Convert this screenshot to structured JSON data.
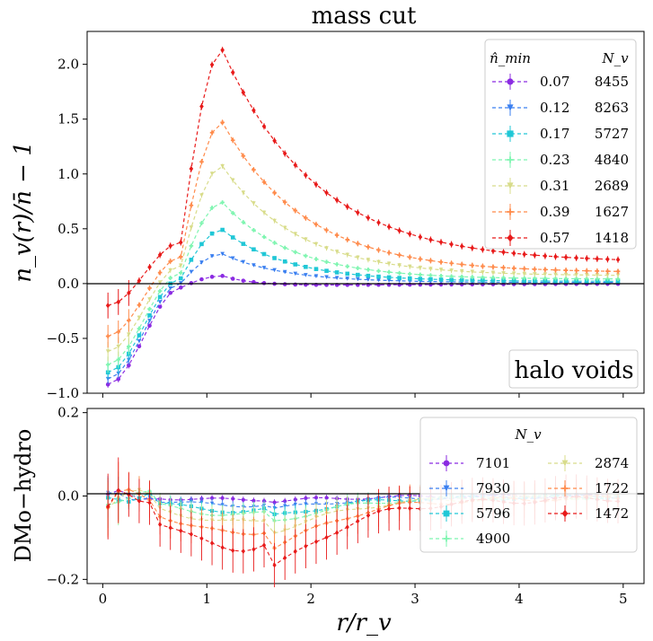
{
  "chart_data": [
    {
      "type": "line",
      "panel": "top",
      "title": "mass cut",
      "ylabel": "n_v(r)/n̄ − 1",
      "xlim": [
        -0.15,
        5.2
      ],
      "ylim": [
        -1.0,
        2.3
      ],
      "yticks": [
        -1.0,
        -0.5,
        0.0,
        0.5,
        1.0,
        1.5,
        2.0
      ],
      "yticklabels": [
        "−1.0",
        "−0.5",
        "0.0",
        "0.5",
        "1.0",
        "1.5",
        "2.0"
      ],
      "annotation": "halo voids",
      "legend_header": [
        "n̂_min",
        "N_v"
      ],
      "series": [
        {
          "name": "0.07",
          "count": "8455",
          "color": "#8b2be2",
          "marker": "circle",
          "peak": 0.07,
          "tail": 0.0,
          "mn": -0.92
        },
        {
          "name": "0.12",
          "count": "8263",
          "color": "#3a7ff0",
          "marker": "tri",
          "peak": 0.27,
          "tail": 0.01,
          "mn": -0.87
        },
        {
          "name": "0.17",
          "count": "5727",
          "color": "#20c7d6",
          "marker": "square",
          "peak": 0.49,
          "tail": 0.02,
          "mn": -0.81
        },
        {
          "name": "0.23",
          "count": "4840",
          "color": "#7ef5b0",
          "marker": "plus",
          "peak": 0.74,
          "tail": 0.04,
          "mn": -0.74
        },
        {
          "name": "0.31",
          "count": "2689",
          "color": "#d8dc8a",
          "marker": "tri",
          "peak": 1.07,
          "tail": 0.07,
          "mn": -0.62
        },
        {
          "name": "0.39",
          "count": "1627",
          "color": "#ff8a4a",
          "marker": "plus",
          "peak": 1.47,
          "tail": 0.1,
          "mn": -0.48
        },
        {
          "name": "0.57",
          "count": "1418",
          "color": "#e81a1a",
          "marker": "diamond",
          "peak": 2.13,
          "tail": 0.19,
          "mn": -0.2
        }
      ]
    },
    {
      "type": "line",
      "panel": "bottom",
      "xlabel": "r/r_v",
      "ylabel": "DMo−hydro",
      "xlim": [
        -0.15,
        5.2
      ],
      "ylim": [
        -0.21,
        0.21
      ],
      "xticks": [
        0,
        1,
        2,
        3,
        4,
        5
      ],
      "xticklabels": [
        "0",
        "1",
        "2",
        "3",
        "4",
        "5"
      ],
      "yticks": [
        -0.2,
        0.0,
        0.2
      ],
      "yticklabels": [
        "−0.2",
        "0.0",
        "0.2"
      ],
      "legend_header": "N_v",
      "series": [
        {
          "name": "7101",
          "color": "#8b2be2",
          "depth": 0.01
        },
        {
          "name": "7930",
          "color": "#3a7ff0",
          "depth": 0.025
        },
        {
          "name": "5796",
          "color": "#20c7d6",
          "depth": 0.04
        },
        {
          "name": "4900",
          "color": "#7ef5b0",
          "depth": 0.05
        },
        {
          "name": "2874",
          "color": "#d8dc8a",
          "depth": 0.07
        },
        {
          "name": "1722",
          "color": "#ff8a4a",
          "depth": 0.1
        },
        {
          "name": "1472",
          "color": "#e81a1a",
          "depth": 0.14
        }
      ]
    }
  ]
}
